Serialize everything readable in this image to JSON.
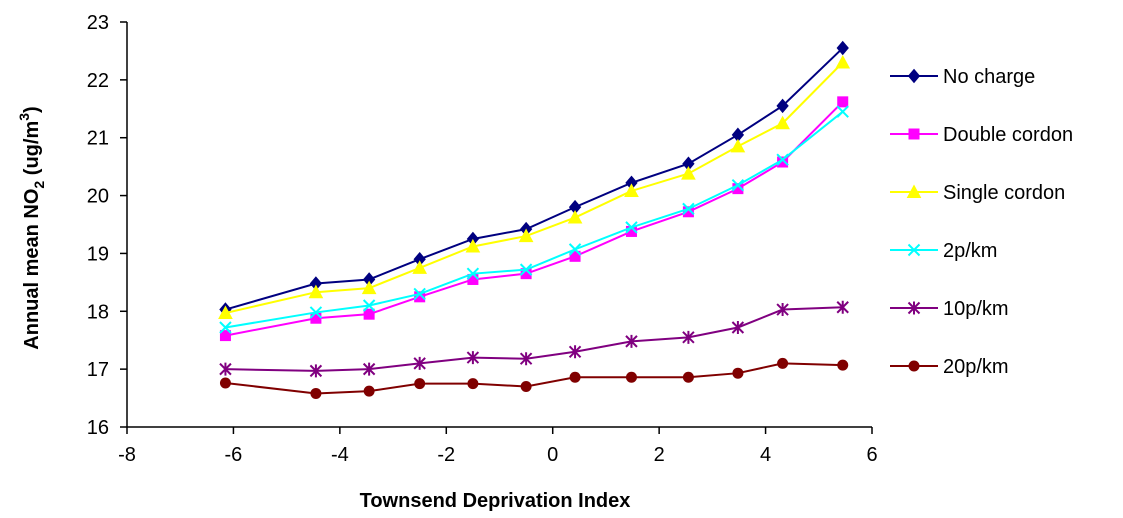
{
  "chart_data": {
    "type": "line",
    "xlabel": "Townsend Deprivation Index",
    "ylabel": {
      "prefix": "Annual mean NO",
      "sub": "2",
      "middle": " (ug/m",
      "sup": "3",
      "suffix": ")"
    },
    "xlim": [
      -8,
      6
    ],
    "ylim": [
      16,
      23
    ],
    "xticks": [
      "-8",
      "-6",
      "-4",
      "-2",
      "0",
      "2",
      "4",
      "6"
    ],
    "yticks": [
      "16",
      "17",
      "18",
      "19",
      "20",
      "21",
      "22",
      "23"
    ],
    "grid": false,
    "legend_position": "right",
    "x": [
      -6.15,
      -4.45,
      -3.45,
      -2.5,
      -1.5,
      -0.5,
      0.42,
      1.48,
      2.55,
      3.48,
      4.32,
      5.45
    ],
    "series": [
      {
        "name": "No charge",
        "color": "#000080",
        "marker": "diamond",
        "values": [
          18.03,
          18.48,
          18.55,
          18.9,
          19.25,
          19.42,
          19.8,
          20.22,
          20.55,
          21.05,
          21.55,
          22.55
        ]
      },
      {
        "name": "Double cordon",
        "color": "#FF00FF",
        "marker": "square",
        "values": [
          17.58,
          17.88,
          17.95,
          18.25,
          18.55,
          18.65,
          18.95,
          19.38,
          19.72,
          20.12,
          20.58,
          21.62
        ]
      },
      {
        "name": "Single cordon",
        "color": "#FFFF00",
        "marker": "triangle",
        "values": [
          17.97,
          18.33,
          18.4,
          18.75,
          19.12,
          19.3,
          19.62,
          20.08,
          20.38,
          20.85,
          21.25,
          22.3
        ]
      },
      {
        "name": "2p/km",
        "color": "#00FFFF",
        "marker": "x",
        "values": [
          17.72,
          17.98,
          18.1,
          18.3,
          18.65,
          18.72,
          19.07,
          19.45,
          19.77,
          20.18,
          20.62,
          21.45
        ]
      },
      {
        "name": "10p/km",
        "color": "#800080",
        "marker": "star",
        "values": [
          17.0,
          16.97,
          17.0,
          17.1,
          17.2,
          17.18,
          17.3,
          17.48,
          17.55,
          17.72,
          18.03,
          18.07
        ]
      },
      {
        "name": "20p/km",
        "color": "#800000",
        "marker": "circle",
        "values": [
          16.76,
          16.58,
          16.62,
          16.75,
          16.75,
          16.7,
          16.86,
          16.86,
          16.86,
          16.93,
          17.1,
          17.07
        ]
      }
    ]
  }
}
